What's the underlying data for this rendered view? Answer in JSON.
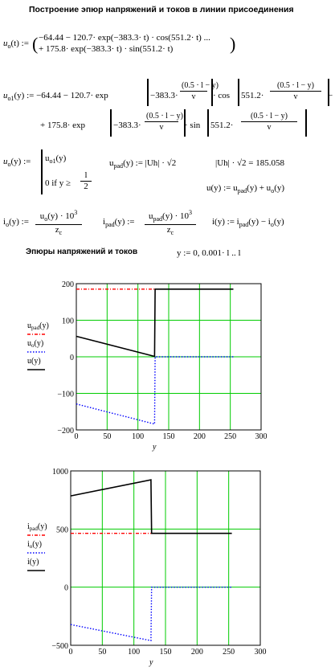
{
  "title": "Построение эпюр напряжений и токов в линии присоединения",
  "eq1": {
    "lhs": "u",
    "lhs_sub": "o",
    "lhs_arg": "(t) :=",
    "line1": "−64.44 − 120.7· exp(−383.3· t) · cos(551.2· t) ...",
    "line2": "+ 175.8· exp(−383.3· t) · sin(551.2· t)"
  },
  "eq2": {
    "lhs": "u",
    "lhs_sub": "o1",
    "lhs_arg": "(y) := −64.44 − 120.7· exp",
    "a1": "−383.3·",
    "frac_num": "(0.5 · l − y)",
    "frac_den": "v",
    "mid": "· cos",
    "a2": "551.2·",
    "tail": "−",
    "line2_a": "+ 175.8· exp",
    "line2_b": "· sin",
    "line2_frac_num": "(0.5 · l − y)"
  },
  "eq3": {
    "lhs": "u",
    "lhs_sub": "o",
    "lhs_arg": "(y) :=",
    "case1": "u",
    "case1_sub": "o1",
    "case1_arg": "(y)",
    "case2": "0  if  y ≥",
    "case2_num": "l",
    "case2_den": "2",
    "upad_lhs": "u",
    "upad_sub": "pad",
    "upad_rhs": "(y) :=  |Uh| · √2",
    "upad_val": "|Uh| · √2 = 185.058",
    "u_def": "u(y) := u",
    "u_def_sub1": "pad",
    "u_def_mid": "(y) + u",
    "u_def_sub2": "o",
    "u_def_end": "(y)"
  },
  "eq4": {
    "io_lhs": "i",
    "io_sub": "o",
    "io_arg": "(y) :=",
    "io_num": "u",
    "io_num_sub": "o",
    "io_num_arg": "(y) · 10",
    "io_num_sup": "3",
    "io_den": "z",
    "io_den_sub": "c",
    "ipad_lhs": "i",
    "ipad_sub": "pad",
    "ipad_arg": "(y) :=",
    "ipad_num": "u",
    "ipad_num_sub": "pad",
    "ipad_num_arg": "(y) · 10",
    "ipad_num_sup": "3",
    "ipad_den": "z",
    "ipad_den_sub": "c",
    "i_def": "i(y) := i",
    "i_def_sub1": "pad",
    "i_def_mid": "(y) − i",
    "i_def_sub2": "o",
    "i_def_end": "(y)"
  },
  "section": {
    "heading": "Эпюры напряжений и токов",
    "range": "y := 0, 0.001· l .. l"
  },
  "chart_data": [
    {
      "type": "line",
      "xlabel": "y",
      "xlim": [
        0,
        300
      ],
      "ylim": [
        -200,
        200
      ],
      "xticks": [
        "0",
        "50",
        "100",
        "150",
        "200",
        "250",
        "300"
      ],
      "yticks": [
        "200",
        "100",
        "0",
        "−100",
        "−200"
      ],
      "grid": true,
      "grid_color": "#00cc00",
      "series": [
        {
          "name": "u",
          "name_sub": "pad",
          "name_arg": "(y)",
          "color": "#ff0000",
          "style": "dashdot",
          "x": [
            0,
            127
          ],
          "y": [
            185.06,
            185.06
          ]
        },
        {
          "name": "u",
          "name_sub": "o",
          "name_arg": "(y)",
          "color": "#0000ff",
          "style": "dotted",
          "x": [
            0,
            127,
            128,
            255
          ],
          "y": [
            -129,
            -184,
            0,
            0
          ]
        },
        {
          "name": "u",
          "name_sub": "",
          "name_arg": "(y)",
          "color": "#000000",
          "style": "solid",
          "x": [
            0,
            127,
            128,
            255
          ],
          "y": [
            56,
            1,
            185.06,
            185.06
          ]
        }
      ]
    },
    {
      "type": "line",
      "xlabel": "y",
      "xlim": [
        0,
        300
      ],
      "ylim": [
        -500,
        1000
      ],
      "xticks": [
        "0",
        "50",
        "100",
        "150",
        "200",
        "250",
        "300"
      ],
      "yticks": [
        "1000",
        "500",
        "0",
        "−500"
      ],
      "grid": true,
      "grid_color": "#00cc00",
      "series": [
        {
          "name": "i",
          "name_sub": "pad",
          "name_arg": "(y)",
          "color": "#ff0000",
          "style": "dashdot",
          "x": [
            0,
            127
          ],
          "y": [
            463,
            463
          ]
        },
        {
          "name": "i",
          "name_sub": "o",
          "name_arg": "(y)",
          "color": "#0000ff",
          "style": "dotted",
          "x": [
            0,
            127,
            128,
            255
          ],
          "y": [
            -322,
            -460,
            0,
            0
          ]
        },
        {
          "name": "i",
          "name_sub": "",
          "name_arg": "(y)",
          "color": "#000000",
          "style": "solid",
          "x": [
            0,
            127,
            128,
            255
          ],
          "y": [
            785,
            923,
            463,
            463
          ]
        }
      ]
    }
  ]
}
